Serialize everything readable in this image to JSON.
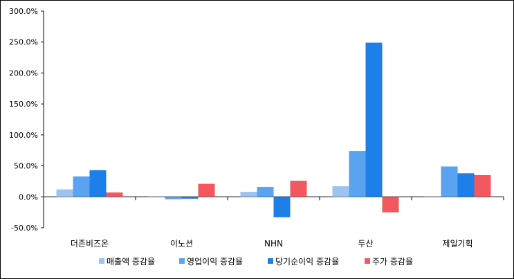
{
  "chart_data": {
    "type": "bar",
    "title": "",
    "xlabel": "",
    "ylabel": "",
    "categories": [
      "더존비즈온",
      "이노션",
      "NHN",
      "두산",
      "제일기획"
    ],
    "ylim": [
      -50,
      300
    ],
    "yticks": [
      -50,
      0,
      50,
      100,
      150,
      200,
      250,
      300
    ],
    "ytick_labels": [
      "-50.0%",
      "0.0%",
      "50.0%",
      "100.0%",
      "150.0%",
      "200.0%",
      "250.0%",
      "300.0%"
    ],
    "grid": false,
    "legend_position": "bottom",
    "series": [
      {
        "name": "매출액 증감율",
        "color": "#9dc3f0",
        "values": [
          12,
          -1,
          8,
          17,
          -1
        ]
      },
      {
        "name": "영업이익 증감율",
        "color": "#5aa3f0",
        "values": [
          33,
          -4,
          16,
          74,
          49
        ]
      },
      {
        "name": "당기순이익 증감율",
        "color": "#1e7fe8",
        "values": [
          43,
          -3,
          -33,
          249,
          38
        ]
      },
      {
        "name": "주가 증감율",
        "color": "#f2585e",
        "values": [
          7,
          21,
          26,
          -25,
          35
        ]
      }
    ]
  }
}
